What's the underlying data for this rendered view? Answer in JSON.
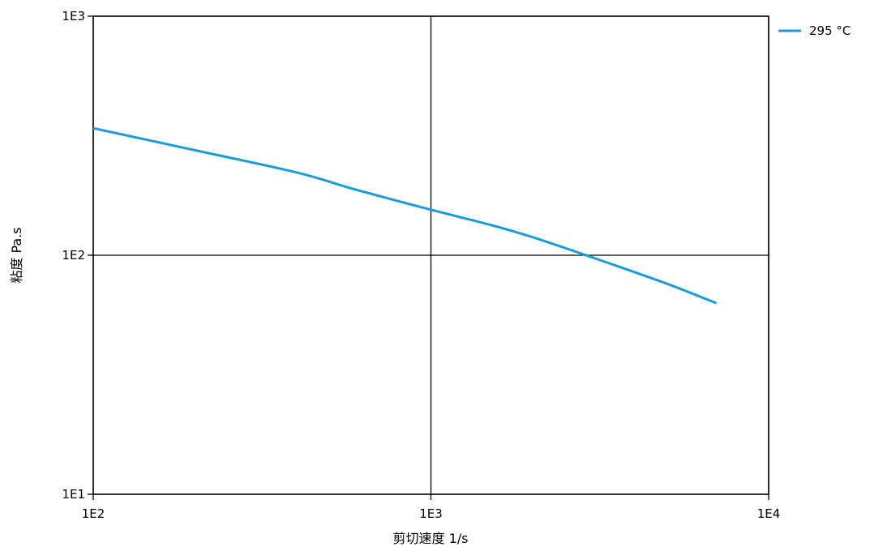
{
  "chart_data": {
    "type": "line",
    "xlabel": "剪切速度  1/s",
    "ylabel": "粘度  Pa.s",
    "x_scale": "log",
    "y_scale": "log",
    "xlim": [
      100,
      10000
    ],
    "ylim": [
      10,
      1000
    ],
    "x_ticks": [
      "1E2",
      "1E3",
      "1E4"
    ],
    "y_ticks": [
      "1E3",
      "1E2",
      "1E1"
    ],
    "grid": true,
    "legend_position": "top-right",
    "series": [
      {
        "name": "295 °C",
        "color": "#1a9cd8",
        "x": [
          100,
          200,
          400,
          600,
          1000,
          1500,
          2000,
          3000,
          5000,
          7000
        ],
        "y": [
          340,
          275,
          222,
          188,
          155,
          134,
          119,
          98,
          76,
          63
        ]
      }
    ]
  }
}
